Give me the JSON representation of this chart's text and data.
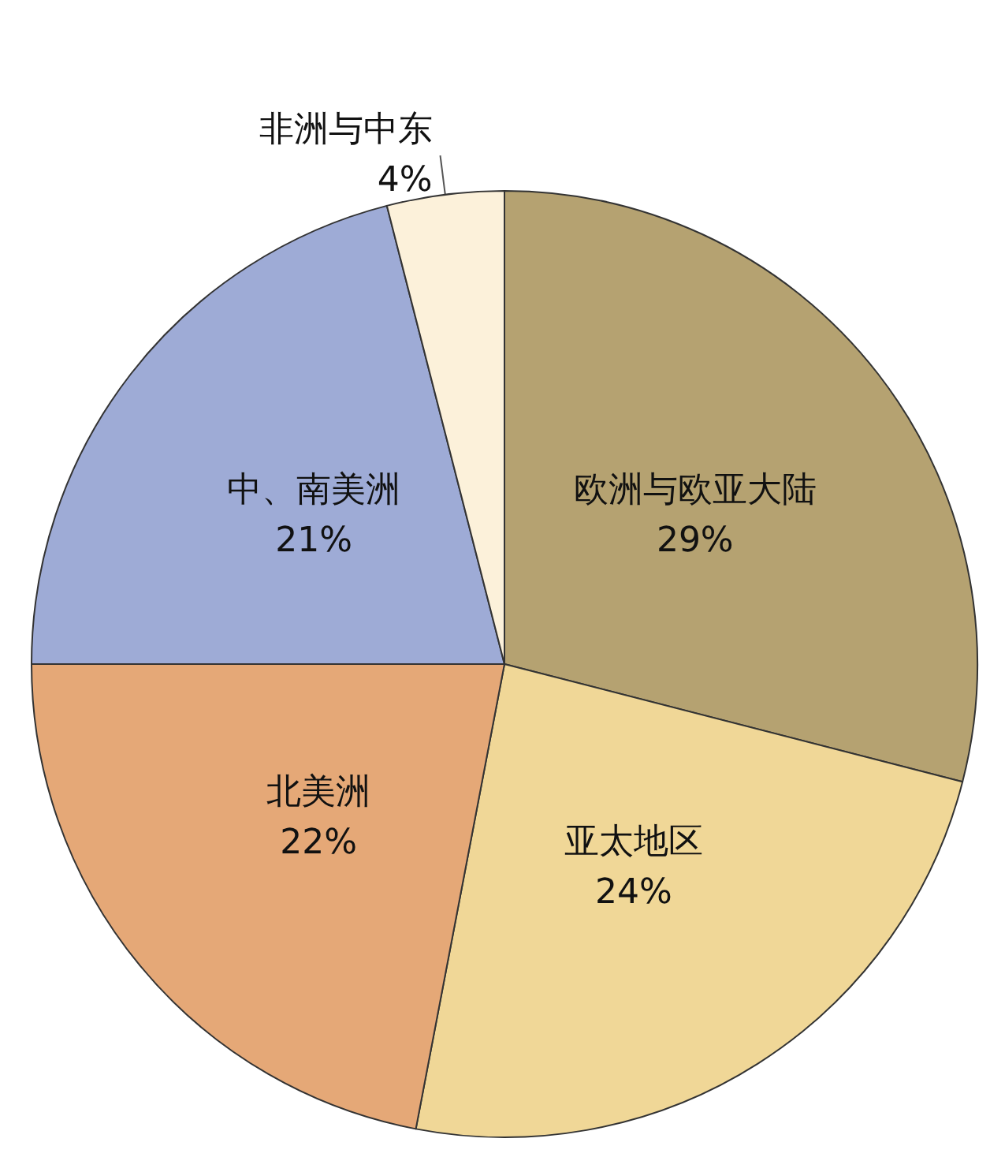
{
  "chart_data": {
    "type": "pie",
    "categories": [
      "欧洲与欧亚大陆",
      "亚太地区",
      "北美洲",
      "中、南美洲",
      "非洲与中东"
    ],
    "values": [
      29,
      24,
      22,
      21,
      4
    ],
    "value_labels": [
      "29%",
      "24%",
      "22%",
      "21%",
      "4%"
    ],
    "colors": [
      "#b5a271",
      "#f0d797",
      "#e5a877",
      "#9eabd6",
      "#fcf1da"
    ]
  }
}
